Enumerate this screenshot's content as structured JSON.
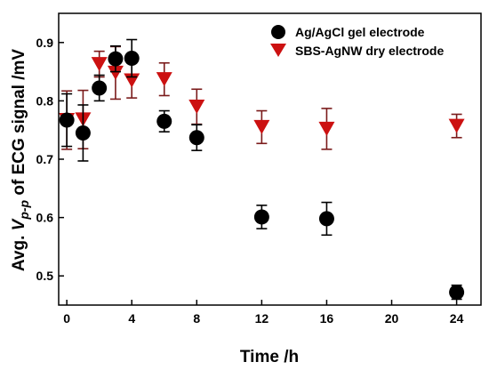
{
  "chart_data": {
    "type": "scatter",
    "xlabel": "Time /h",
    "ylabel_parts": [
      "Avg. ",
      "V",
      "p-p",
      " of ECG signal /mV"
    ],
    "xlim": [
      -0.5,
      25.5
    ],
    "ylim": [
      0.45,
      0.95
    ],
    "x_ticks": [
      0,
      4,
      8,
      12,
      16,
      20,
      24
    ],
    "y_ticks": [
      0.5,
      0.6,
      0.7,
      0.8,
      0.9
    ],
    "y_tick_labels": [
      "0.5",
      "0.6",
      "0.7",
      "0.8",
      "0.9"
    ],
    "legend_position": "top-right",
    "series": [
      {
        "name": "Ag/AgCl gel electrode",
        "marker": "circle",
        "color": "#000000",
        "errcolor": "#000000",
        "x": [
          0,
          1,
          2,
          3,
          4,
          6,
          8,
          12,
          16,
          24
        ],
        "y": [
          0.767,
          0.745,
          0.822,
          0.872,
          0.873,
          0.765,
          0.737,
          0.601,
          0.598,
          0.472
        ],
        "err": [
          0.045,
          0.048,
          0.022,
          0.022,
          0.032,
          0.018,
          0.022,
          0.02,
          0.028,
          0.012
        ]
      },
      {
        "name": "SBS-AgNW dry electrode",
        "marker": "triangle-down",
        "color": "#cc1111",
        "errcolor": "#7a1a1a",
        "x": [
          0,
          1,
          2,
          3,
          4,
          6,
          8,
          12,
          16,
          24
        ],
        "y": [
          0.767,
          0.768,
          0.863,
          0.848,
          0.835,
          0.837,
          0.79,
          0.755,
          0.752,
          0.757
        ],
        "err": [
          0.05,
          0.05,
          0.022,
          0.045,
          0.03,
          0.028,
          0.03,
          0.028,
          0.035,
          0.02
        ]
      }
    ]
  }
}
